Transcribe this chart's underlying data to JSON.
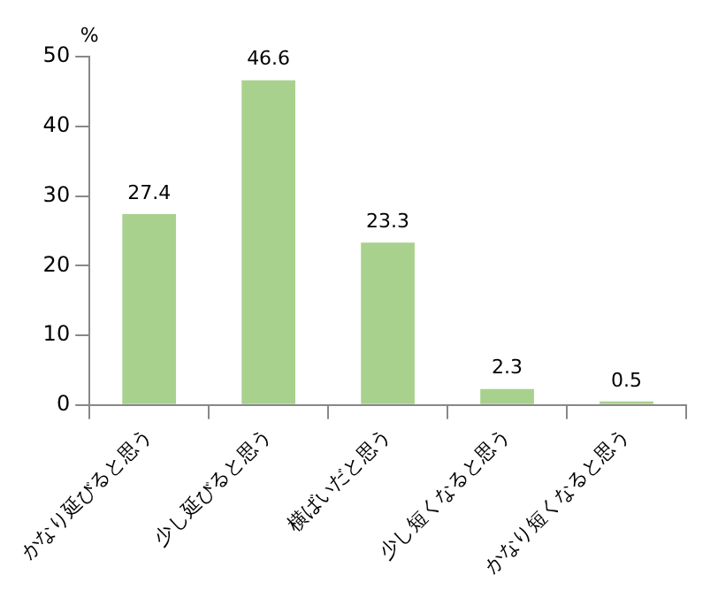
{
  "chart_data": {
    "type": "bar",
    "ylabel": "%",
    "categories": [
      "かなり延びると思う",
      "少し延びると思う",
      "横ばいだと思う",
      "少し短くなると思う",
      "かなり短くなると思う"
    ],
    "values": [
      27.4,
      46.6,
      23.3,
      2.3,
      0.5
    ],
    "color": "#a9d18e",
    "ylim": [
      0,
      50
    ],
    "yticks": [
      0,
      10,
      20,
      30,
      40,
      50
    ],
    "grid": false,
    "data_labels": true,
    "legend": false
  }
}
